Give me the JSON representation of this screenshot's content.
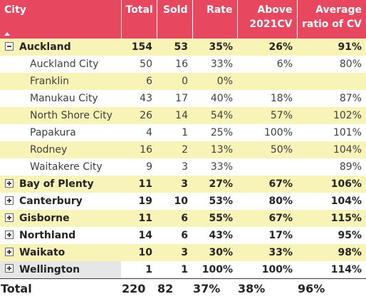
{
  "headers": {
    "city": "City",
    "total": "Total",
    "sold": "Sold",
    "rate": "Rate",
    "above": "Above\n2021CV",
    "avg": "Average\nratio of CV"
  },
  "colors": {
    "header_bg": "#e8485f",
    "header_text": "#ffffff",
    "band_row": "#f8f3b6",
    "selected_cell": "#e6e6e6"
  },
  "rows": [
    {
      "kind": "group",
      "toggle": "collapse-icon",
      "city": "Auckland",
      "total": "154",
      "sold": "53",
      "rate": "35%",
      "above": "26%",
      "avg": "91%"
    },
    {
      "kind": "child",
      "city": "Auckland City",
      "total": "50",
      "sold": "16",
      "rate": "33%",
      "above": "6%",
      "avg": "80%"
    },
    {
      "kind": "child",
      "city": "Franklin",
      "total": "6",
      "sold": "0",
      "rate": "0%",
      "above": "",
      "avg": ""
    },
    {
      "kind": "child",
      "city": "Manukau City",
      "total": "43",
      "sold": "17",
      "rate": "40%",
      "above": "18%",
      "avg": "87%"
    },
    {
      "kind": "child",
      "city": "North Shore City",
      "total": "26",
      "sold": "14",
      "rate": "54%",
      "above": "57%",
      "avg": "102%"
    },
    {
      "kind": "child",
      "city": "Papakura",
      "total": "4",
      "sold": "1",
      "rate": "25%",
      "above": "100%",
      "avg": "101%"
    },
    {
      "kind": "child",
      "city": "Rodney",
      "total": "16",
      "sold": "2",
      "rate": "13%",
      "above": "50%",
      "avg": "104%"
    },
    {
      "kind": "child",
      "city": "Waitakere City",
      "total": "9",
      "sold": "3",
      "rate": "33%",
      "above": "",
      "avg": "89%"
    },
    {
      "kind": "group",
      "toggle": "expand-icon",
      "city": "Bay of Plenty",
      "total": "11",
      "sold": "3",
      "rate": "27%",
      "above": "67%",
      "avg": "106%"
    },
    {
      "kind": "group",
      "toggle": "expand-icon",
      "city": "Canterbury",
      "total": "19",
      "sold": "10",
      "rate": "53%",
      "above": "80%",
      "avg": "104%"
    },
    {
      "kind": "group",
      "toggle": "expand-icon",
      "city": "Gisborne",
      "total": "11",
      "sold": "6",
      "rate": "55%",
      "above": "67%",
      "avg": "115%"
    },
    {
      "kind": "group",
      "toggle": "expand-icon",
      "city": "Northland",
      "total": "14",
      "sold": "6",
      "rate": "43%",
      "above": "17%",
      "avg": "95%"
    },
    {
      "kind": "group",
      "toggle": "expand-icon",
      "city": "Waikato",
      "total": "10",
      "sold": "3",
      "rate": "30%",
      "above": "33%",
      "avg": "98%"
    },
    {
      "kind": "group",
      "toggle": "expand-icon",
      "city": "Wellington",
      "total": "1",
      "sold": "1",
      "rate": "100%",
      "above": "100%",
      "avg": "114%",
      "selected": true
    }
  ],
  "total_row": {
    "label": "Total",
    "total": "220",
    "sold": "82",
    "rate": "37%",
    "above": "38%",
    "avg": "96%"
  }
}
